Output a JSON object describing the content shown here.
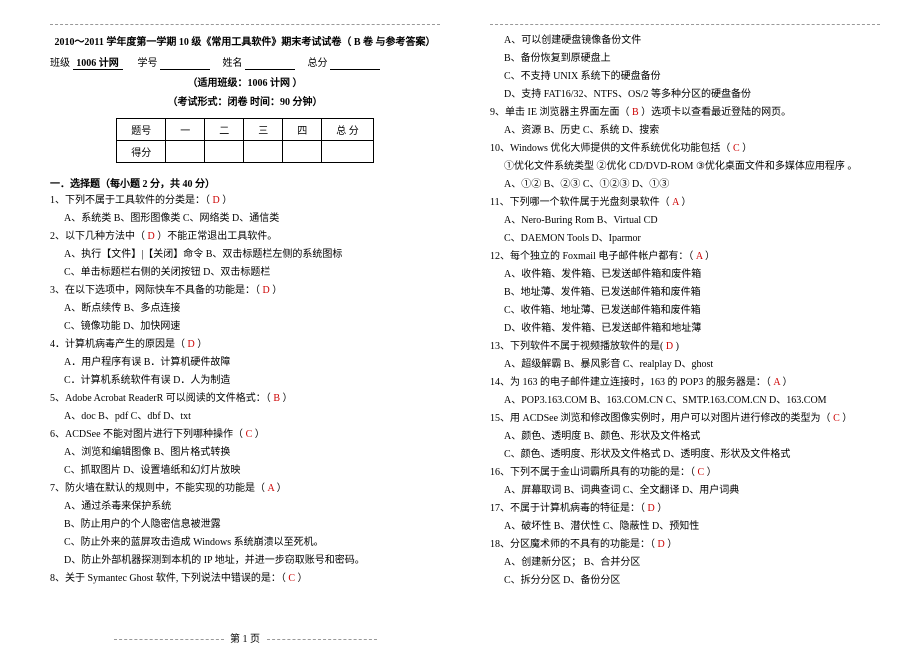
{
  "header": {
    "title_line": "2010～2011 学年度第一学期 10 级《常用工具软件》期末考试试卷（ B 卷  与参考答案）",
    "class_label": "班级",
    "class_value": "1006 计网",
    "sid_label": "学号",
    "name_label": "姓名",
    "total_label": "总分",
    "applicable": "（适用班级：1006 计网  ）",
    "exam_form": "（考试形式：闭卷        时间：90 分钟）"
  },
  "score_table": {
    "headers": [
      "题号",
      "一",
      "二",
      "三",
      "四",
      "总  分"
    ],
    "row_label": "得分"
  },
  "section1": {
    "head": "一．选择题（每小题 2 分，共 40 分）"
  },
  "q1": {
    "stem": "1、下列不属于工具软件的分类是：（",
    "ans": "D",
    "tail": "）",
    "opts": "A、系统类   B、图形图像类   C、网络类   D、通信类"
  },
  "q2": {
    "stem": "2、以下几种方法中（",
    "ans": "D",
    "tail": "）不能正常退出工具软件。",
    "optA": "A、执行【文件】|【关闭】命令        B、双击标题栏左侧的系统图标",
    "optB": "C、单击标题栏右侧的关闭按钮          D、双击标题栏"
  },
  "q3": {
    "stem": "3、在以下选项中，网际快车不具备的功能是：（",
    "ans": "D",
    "tail": "）",
    "optA": "A、断点续传                B、多点连接",
    "optB": "C、镜像功能                D、加快网速"
  },
  "q4": {
    "stem": "4．计算机病毒产生的原因是（",
    "ans": "D",
    "tail": "）",
    "optA": "A．用户程序有误            B．计算机硬件故障",
    "optB": "C．计算机系统软件有误      D．人为制造"
  },
  "q5": {
    "stem": "5、Adobe Acrobat ReaderR 可以阅读的文件格式：（",
    "ans": "B",
    "tail": "）",
    "opts": "A、doc   B、pdf   C、dbf   D、txt"
  },
  "q6": {
    "stem": "6、ACDSee 不能对图片进行下列哪种操作（",
    "ans": "C",
    "tail": "）",
    "optA": "A、浏览和编辑图像      B、图片格式转换",
    "optB": "C、抓取图片            D、设置墙纸和幻灯片放映"
  },
  "q7": {
    "stem": "7、防火墙在默认的规则中，不能实现的功能是（",
    "ans": "A",
    "tail": "）",
    "optA": "A、通过杀毒来保护系统",
    "optB": "B、防止用户的个人隐密信息被泄露",
    "optC": "C、防止外来的蓝屏攻击造成 Windows 系统崩溃以至死机。",
    "optD": "D、防止外部机器探测到本机的 IP 地址，并进一步窃取账号和密码。"
  },
  "q8": {
    "stem": "8、关于 Symantec Ghost 软件, 下列说法中错误的是：（",
    "ans": "C",
    "tail": "）"
  },
  "r_opts_8": {
    "a": "A、可以创建硬盘镜像备份文件",
    "b": "B、备份恢复到原硬盘上",
    "c": "C、不支持 UNIX 系统下的硬盘备份",
    "d": "D、支持 FAT16/32、NTFS、OS/2 等多种分区的硬盘备份"
  },
  "q9": {
    "stem": "9、单击 IE 浏览器主界面左面（",
    "ans": "B",
    "tail": "）选项卡以查看最近登陆的网页。",
    "opts": "A、资源     B、历史     C、系统     D、搜索"
  },
  "q10": {
    "stem": "10、Windows 优化大师提供的文件系统优化功能包括（",
    "ans": "C",
    "tail": "）",
    "line": "①优化文件系统类型  ②优化 CD/DVD-ROM  ③优化桌面文件和多媒体应用程序 。",
    "opts": "A、①②    B、②③    C、①②③    D、①③"
  },
  "q11": {
    "stem": "11、下列哪一个软件属于光盘刻录软件（",
    "ans": "A",
    "tail": "）",
    "optA": "A、Nero-Buring  Rom     B、Virtual CD",
    "optB": "C、DAEMON  Tools       D、Iparmor"
  },
  "q12": {
    "stem": "12、每个独立的 Foxmail 电子邮件帐户都有：（",
    "ans": "A",
    "tail": "）",
    "a": "A、收件箱、发件箱、已发送邮件箱和废件箱",
    "b": "B、地址薄、发件箱、已发送邮件箱和废件箱",
    "c": "C、收件箱、地址薄、已发送邮件箱和废件箱",
    "d": "D、收件箱、发件箱、已发送邮件箱和地址薄"
  },
  "q13": {
    "stem": "13、下列软件不属于视频播放软件的是(",
    "ans": "D",
    "tail": "  )",
    "opts": "A、超级解霸      B、暴风影音   C、realplay    D、ghost"
  },
  "q14": {
    "stem": "14、为 163 的电子邮件建立连接时，163 的 POP3 的服务器是：（",
    "ans": "A",
    "tail": "）",
    "opts": "A、POP3.163.COM   B、163.COM.CN   C、SMTP.163.COM.CN   D、163.COM"
  },
  "q15": {
    "stem": "15、用 ACDSee 浏览和修改图像实例时，用户可以对图片进行修改的类型为（",
    "ans": "C",
    "tail": "）",
    "optA": "A、颜色、透明度                    B、颜色、形状及文件格式",
    "optB": "C、颜色、透明度、形状及文件格式    D、透明度、形状及文件格式"
  },
  "q16": {
    "stem": "16、下列不属于金山词霸所具有的功能的是：（",
    "ans": "C",
    "tail": "）",
    "opts": "A、屏幕取词    B、词典查词    C、全文翻译    D、用户词典"
  },
  "q17": {
    "stem": "17、不属于计算机病毒的特征是：（",
    "ans": "D",
    "tail": "）",
    "opts": "A、破坏性    B、潜伏性    C、隐蔽性    D、预知性"
  },
  "q18": {
    "stem": "18、分区魔术师的不具有的功能是：（",
    "ans": "D",
    "tail": "）",
    "optA": "A、创建新分区；            B、合并分区",
    "optB": "C、拆分分区                D、备份分区"
  },
  "footer": {
    "page": "第  1  页"
  }
}
